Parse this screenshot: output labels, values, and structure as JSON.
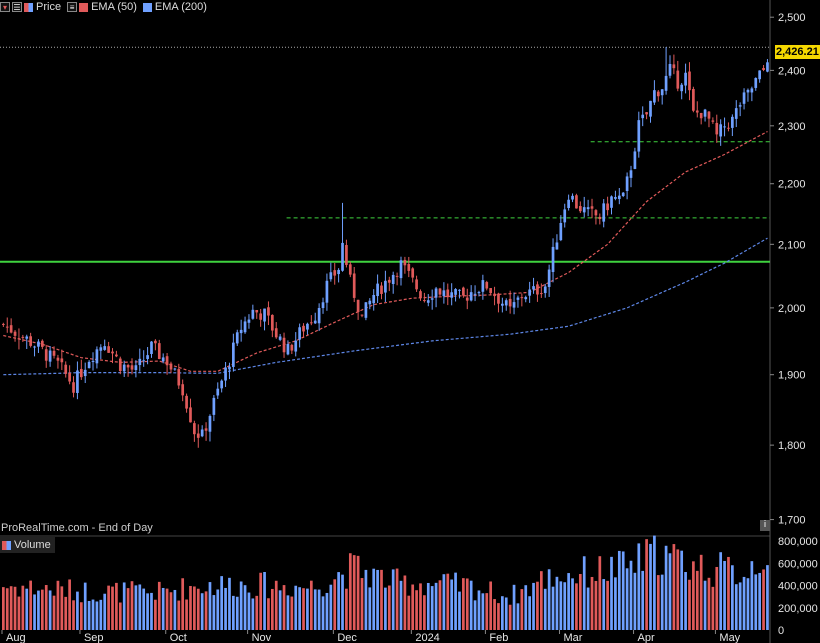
{
  "legend": {
    "price_label": "Price",
    "ema50_label": "EMA (50)",
    "ema200_label": "EMA (200)",
    "volume_label": "Volume"
  },
  "watermark": "ProRealTime.com - End of Day",
  "info_icon": "i",
  "last_price_label": "2,426.21",
  "colors": {
    "up": "#6fa0ff",
    "down": "#e05a5a",
    "ema50": "#e05a5a",
    "ema200": "#5d86e6",
    "support": "#3fd23f",
    "tag": "#f5d800"
  },
  "chart_data": {
    "type": "candlestick",
    "x_labels": [
      "Aug",
      "Sep",
      "Oct",
      "Nov",
      "Dec",
      "2024",
      "Feb",
      "Mar",
      "Apr",
      "May"
    ],
    "y_ticks": [
      1700,
      1800,
      1900,
      2000,
      2100,
      2200,
      2300,
      2400,
      2500
    ],
    "y_tick_labels": [
      "1,700",
      "1,800",
      "1,900",
      "2,000",
      "2,100",
      "2,200",
      "2,300",
      "2,400",
      "2,500"
    ],
    "volume_ticks": [
      0,
      200000,
      400000,
      600000,
      800000
    ],
    "volume_tick_labels": [
      "0",
      "200,000",
      "400,000",
      "600,000",
      "800,000"
    ],
    "last_price": 2426.21,
    "support_line": 2072,
    "dashed_levels": [
      {
        "value": 2143,
        "from": "Nov"
      },
      {
        "value": 2272,
        "from": "Mar"
      }
    ],
    "anchors": [
      [
        0,
        1975
      ],
      [
        8,
        1945
      ],
      [
        14,
        1915
      ],
      [
        18,
        1885
      ],
      [
        22,
        1925
      ],
      [
        26,
        1950
      ],
      [
        30,
        1915
      ],
      [
        34,
        1905
      ],
      [
        38,
        1940
      ],
      [
        42,
        1920
      ],
      [
        46,
        1880
      ],
      [
        49,
        1820
      ],
      [
        51,
        1812
      ],
      [
        54,
        1860
      ],
      [
        57,
        1905
      ],
      [
        61,
        1970
      ],
      [
        64,
        1995
      ],
      [
        67,
        1990
      ],
      [
        70,
        1960
      ],
      [
        73,
        1935
      ],
      [
        77,
        1970
      ],
      [
        80,
        1990
      ],
      [
        83,
        2035
      ],
      [
        86,
        2062
      ],
      [
        87,
        2100
      ],
      [
        89,
        2040
      ],
      [
        92,
        1985
      ],
      [
        95,
        2020
      ],
      [
        98,
        2040
      ],
      [
        102,
        2068
      ],
      [
        105,
        2040
      ],
      [
        108,
        2015
      ],
      [
        111,
        2030
      ],
      [
        114,
        2020
      ],
      [
        118,
        2015
      ],
      [
        121,
        2030
      ],
      [
        124,
        2035
      ],
      [
        127,
        2015
      ],
      [
        130,
        1995
      ],
      [
        133,
        2020
      ],
      [
        136,
        2025
      ],
      [
        139,
        2035
      ],
      [
        141,
        2085
      ],
      [
        143,
        2140
      ],
      [
        145,
        2185
      ],
      [
        147,
        2165
      ],
      [
        150,
        2150
      ],
      [
        153,
        2145
      ],
      [
        156,
        2175
      ],
      [
        159,
        2175
      ],
      [
        161,
        2230
      ],
      [
        163,
        2300
      ],
      [
        165,
        2320
      ],
      [
        167,
        2360
      ],
      [
        169,
        2370
      ],
      [
        171,
        2400
      ],
      [
        173,
        2380
      ],
      [
        175,
        2390
      ],
      [
        177,
        2320
      ],
      [
        179,
        2325
      ],
      [
        181,
        2310
      ],
      [
        183,
        2280
      ],
      [
        185,
        2300
      ],
      [
        187,
        2310
      ],
      [
        189,
        2340
      ],
      [
        191,
        2355
      ],
      [
        193,
        2380
      ],
      [
        195,
        2400
      ],
      [
        196,
        2426
      ]
    ],
    "volume_anchors": [
      [
        0,
        400000
      ],
      [
        20,
        350000
      ],
      [
        40,
        340000
      ],
      [
        50,
        400000
      ],
      [
        60,
        410000
      ],
      [
        80,
        390000
      ],
      [
        86,
        500000
      ],
      [
        90,
        560000
      ],
      [
        100,
        430000
      ],
      [
        110,
        420000
      ],
      [
        120,
        390000
      ],
      [
        130,
        300000
      ],
      [
        140,
        480000
      ],
      [
        150,
        520000
      ],
      [
        160,
        570000
      ],
      [
        168,
        700000
      ],
      [
        172,
        640000
      ],
      [
        180,
        560000
      ],
      [
        190,
        520000
      ],
      [
        196,
        720000
      ]
    ],
    "ema50_anchors": [
      [
        0,
        1958
      ],
      [
        10,
        1945
      ],
      [
        20,
        1925
      ],
      [
        30,
        1918
      ],
      [
        40,
        1920
      ],
      [
        48,
        1905
      ],
      [
        55,
        1905
      ],
      [
        65,
        1932
      ],
      [
        75,
        1950
      ],
      [
        85,
        1978
      ],
      [
        95,
        2005
      ],
      [
        105,
        2015
      ],
      [
        115,
        2018
      ],
      [
        125,
        2020
      ],
      [
        135,
        2024
      ],
      [
        145,
        2055
      ],
      [
        155,
        2100
      ],
      [
        165,
        2170
      ],
      [
        175,
        2220
      ],
      [
        185,
        2250
      ],
      [
        196,
        2290
      ]
    ],
    "ema200_anchors": [
      [
        0,
        1900
      ],
      [
        20,
        1903
      ],
      [
        40,
        1903
      ],
      [
        55,
        1902
      ],
      [
        70,
        1918
      ],
      [
        90,
        1935
      ],
      [
        110,
        1950
      ],
      [
        130,
        1960
      ],
      [
        145,
        1972
      ],
      [
        160,
        2000
      ],
      [
        175,
        2040
      ],
      [
        185,
        2070
      ],
      [
        196,
        2110
      ]
    ]
  }
}
